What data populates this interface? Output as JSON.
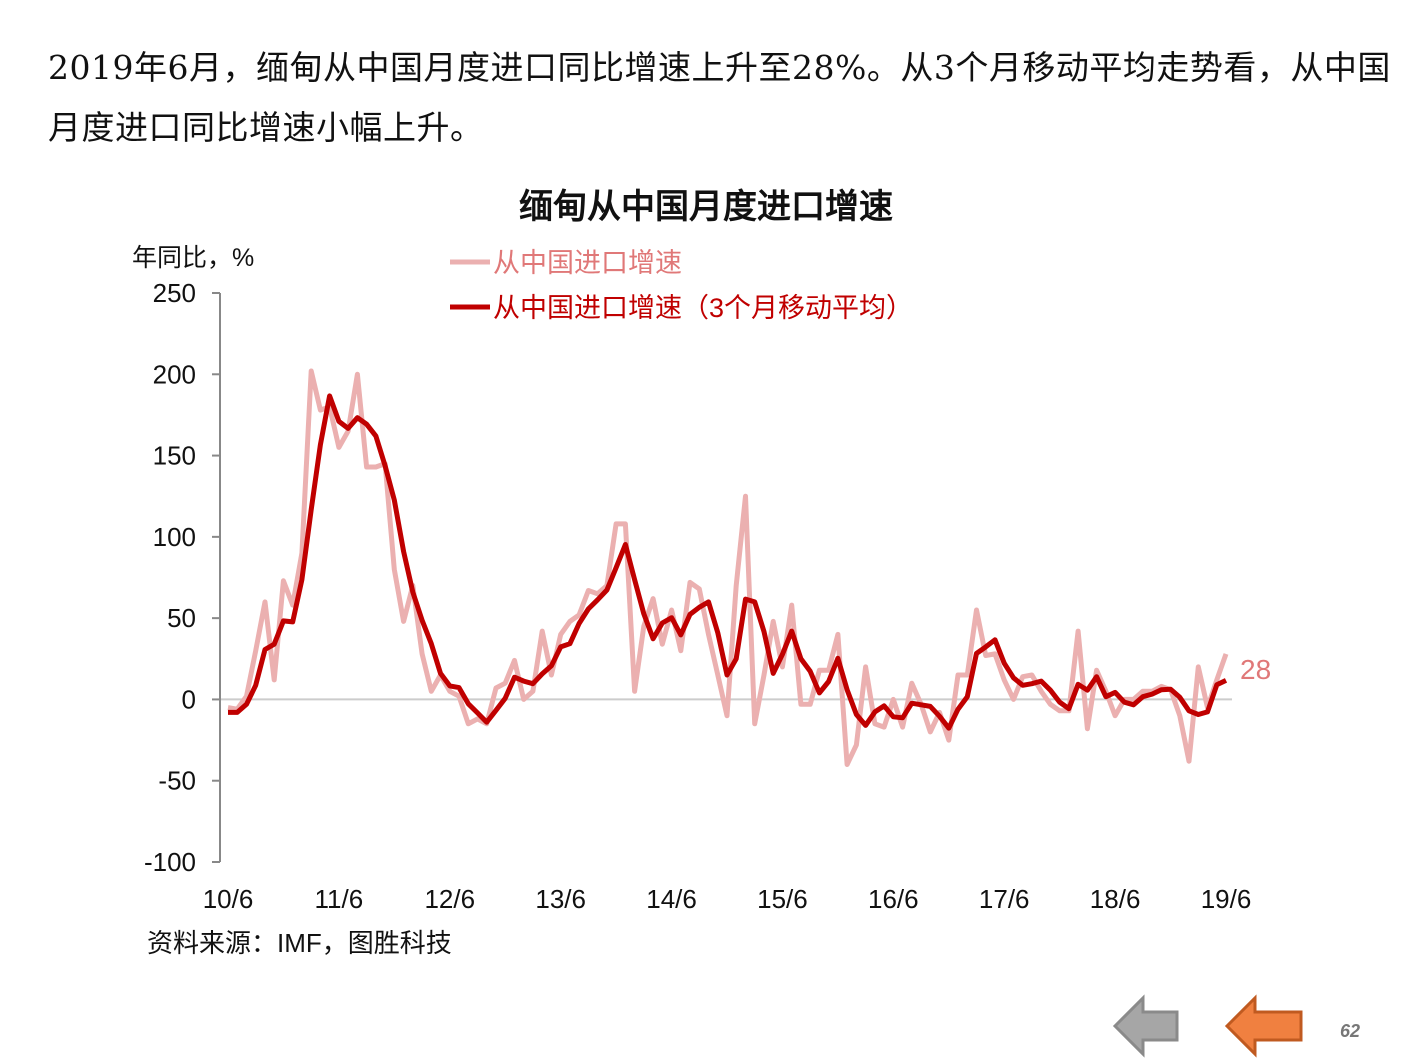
{
  "headline": "2019年6月，缅甸从中国月度进口同比增速上升至28%。从3个月移动平均走势看，从中国月度进口同比增速小幅上升。",
  "page_number": "62",
  "source": "资料来源：IMF，图胜科技",
  "colors": {
    "raw": "#ebb0b0",
    "ma": "#c00000",
    "label": "#e07878",
    "axis": "#888888",
    "zero": "#cccccc"
  },
  "chart_data": {
    "type": "line",
    "title": "缅甸从中国月度进口增速",
    "ylabel": "年同比，%",
    "xlabel": "",
    "ylim": [
      -100,
      250
    ],
    "yticks": [
      250,
      200,
      150,
      100,
      50,
      0,
      -50,
      -100
    ],
    "xtick_labels": [
      "10/6",
      "11/6",
      "12/6",
      "13/6",
      "14/6",
      "15/6",
      "16/6",
      "17/6",
      "18/6",
      "19/6"
    ],
    "x_start": "2010-06",
    "x_end": "2019-06",
    "legend": "top-center",
    "last_label": "28",
    "series": [
      {
        "name": "从中国进口增速",
        "values": [
          -5,
          -6,
          2,
          30,
          60,
          12,
          73,
          58,
          90,
          202,
          178,
          180,
          155,
          165,
          200,
          143,
          143,
          145,
          80,
          48,
          70,
          28,
          5,
          15,
          5,
          2,
          -15,
          -12,
          -15,
          7,
          10,
          24,
          0,
          5,
          42,
          15,
          40,
          48,
          52,
          67,
          65,
          70,
          108,
          108,
          5,
          45,
          62,
          34,
          55,
          30,
          72,
          68,
          40,
          15,
          -10,
          70,
          125,
          -15,
          15,
          48,
          20,
          58,
          -3,
          -3,
          18,
          18,
          40,
          -40,
          -28,
          20,
          -15,
          -17,
          0,
          -17,
          10,
          -3,
          -20,
          -8,
          -25,
          15,
          15,
          55,
          27,
          28,
          12,
          0,
          14,
          15,
          5,
          -3,
          -7,
          -7,
          42,
          -18,
          18,
          5,
          -10,
          0,
          0,
          5,
          5,
          8,
          6,
          -10,
          -38,
          20,
          -5,
          12,
          28
        ]
      },
      {
        "name": "从中国进口增速（3个月移动平均）",
        "values": [
          -8,
          -8,
          -3,
          8.7,
          30.7,
          34,
          48.3,
          47.7,
          73.7,
          116.7,
          156.7,
          186.7,
          171,
          166.7,
          173.3,
          169.3,
          162,
          143.7,
          122.7,
          91,
          66,
          48.7,
          34.3,
          16,
          8.3,
          7.3,
          -2.7,
          -8.3,
          -14,
          -6.7,
          0.7,
          13.7,
          11.3,
          9.7,
          15.7,
          20.7,
          32.3,
          34.3,
          46.7,
          55.7,
          61.3,
          67.3,
          81,
          95.3,
          73.7,
          52.7,
          37.3,
          47,
          50.3,
          39.7,
          52.3,
          56.7,
          60,
          41,
          15,
          25,
          61.7,
          60,
          41.7,
          16,
          27.7,
          42,
          25,
          17.3,
          4,
          11,
          25.3,
          6,
          -9.3,
          -16,
          -7.7,
          -4,
          -10.7,
          -11.3,
          -2.3,
          -3.3,
          -4.3,
          -10.3,
          -17.7,
          -6,
          1.7,
          28.3,
          32.3,
          36.7,
          22.3,
          13.3,
          8.7,
          9.7,
          11.3,
          5.7,
          -1.7,
          -5.7,
          9.3,
          5.7,
          14,
          1.7,
          4.3,
          -1.7,
          -3.3,
          1.7,
          3.3,
          6,
          6.3,
          1.3,
          -7,
          -9.3,
          -7.7,
          9,
          11.7
        ]
      }
    ]
  }
}
